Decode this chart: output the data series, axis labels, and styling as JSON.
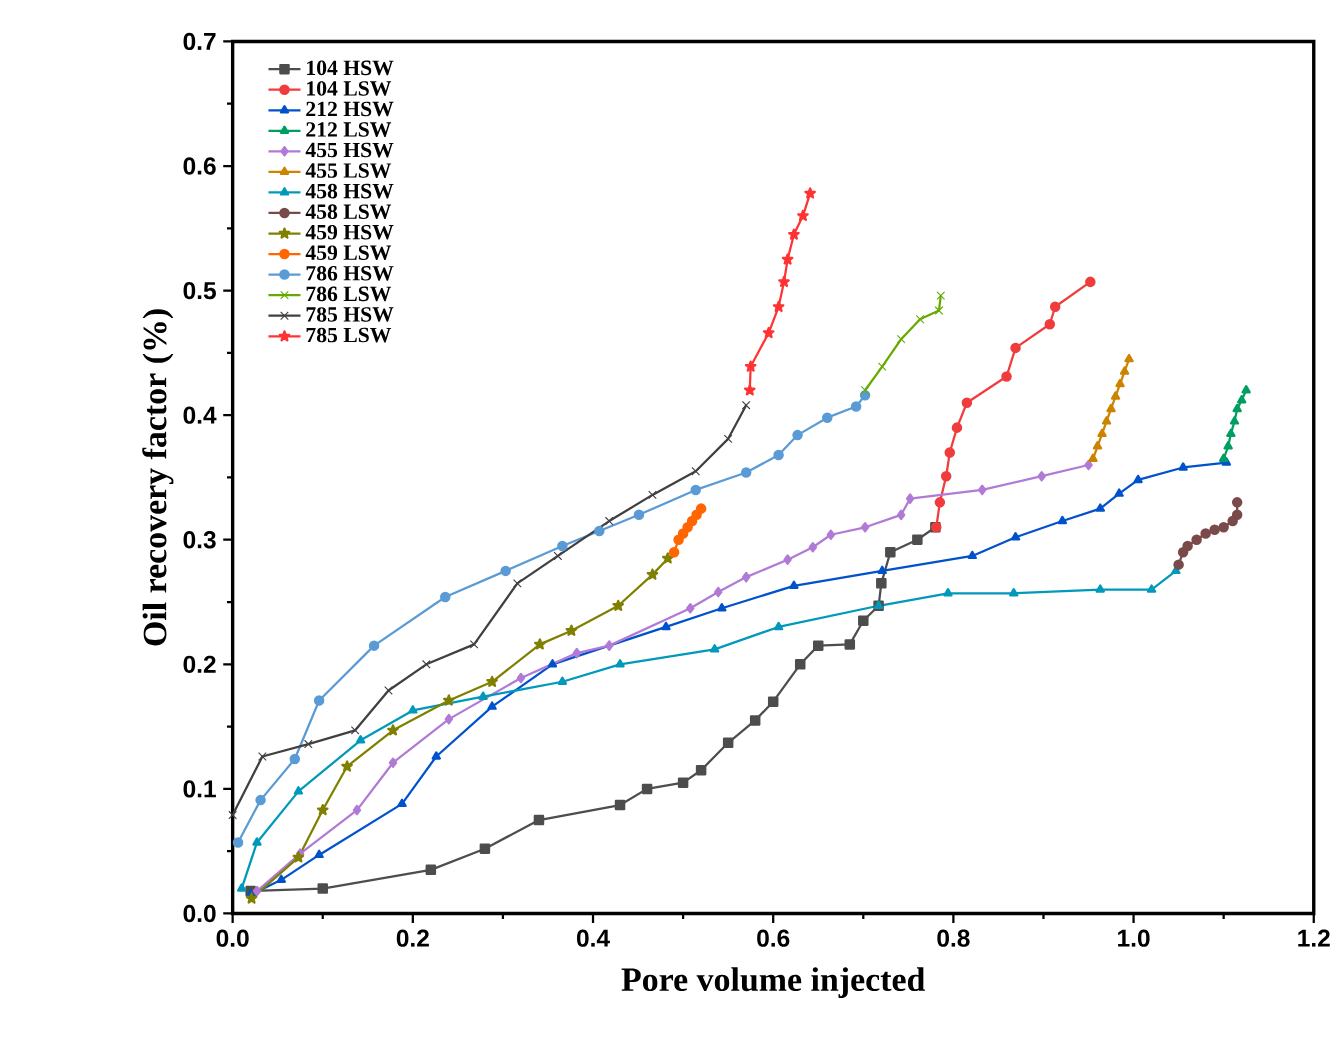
{
  "chart_data": {
    "type": "line",
    "xlabel": "Pore volume injected",
    "ylabel": "Oil recovery factor (%)",
    "xlim": [
      0,
      1.2
    ],
    "ylim": [
      0,
      0.7
    ],
    "xticks": [
      {
        "value": 0,
        "label": "0.0"
      },
      0.2,
      0.4,
      0.6,
      0.8,
      {
        "value": 1,
        "label": "1.0"
      },
      1.2
    ],
    "yticks": [
      {
        "value": 0,
        "label": "0.0"
      },
      0.1,
      0.2,
      0.3,
      0.4,
      0.5,
      0.6,
      0.7
    ],
    "grid": false,
    "legend": "top left",
    "series": [
      {
        "name": "104 HSW",
        "color": "#4d4d4d",
        "marker": "square",
        "x": [
          0.02,
          0.1,
          0.22,
          0.28,
          0.34,
          0.43,
          0.46,
          0.5,
          0.52,
          0.55,
          0.58,
          0.6,
          0.63,
          0.65,
          0.685,
          0.7,
          0.717,
          0.72,
          0.73,
          0.76,
          0.78
        ],
        "values": [
          0.018,
          0.02,
          0.035,
          0.052,
          0.075,
          0.087,
          0.1,
          0.105,
          0.115,
          0.137,
          0.155,
          0.17,
          0.2,
          0.215,
          0.216,
          0.235,
          0.247,
          0.265,
          0.29,
          0.3,
          0.31
        ]
      },
      {
        "name": "104 LSW",
        "color": "#f03c3c",
        "marker": "circle",
        "x": [
          0.781,
          0.785,
          0.792,
          0.796,
          0.804,
          0.815,
          0.859,
          0.869,
          0.907,
          0.913,
          0.952
        ],
        "values": [
          0.31,
          0.33,
          0.351,
          0.37,
          0.39,
          0.41,
          0.431,
          0.454,
          0.473,
          0.487,
          0.507
        ]
      },
      {
        "name": "212 HSW",
        "color": "#0052cc",
        "marker": "triangle",
        "x": [
          0.02,
          0.054,
          0.096,
          0.188,
          0.226,
          0.288,
          0.355,
          0.481,
          0.543,
          0.623,
          0.721,
          0.821,
          0.869,
          0.921,
          0.963,
          0.984,
          1.005,
          1.055,
          1.103
        ],
        "values": [
          0.015,
          0.027,
          0.047,
          0.088,
          0.126,
          0.166,
          0.2,
          0.23,
          0.245,
          0.263,
          0.275,
          0.287,
          0.302,
          0.315,
          0.325,
          0.337,
          0.348,
          0.358,
          0.362
        ]
      },
      {
        "name": "212 LSW",
        "color": "#009e60",
        "marker": "triangle",
        "x": [
          1.1,
          1.105,
          1.108,
          1.112,
          1.115,
          1.12,
          1.125
        ],
        "values": [
          0.365,
          0.375,
          0.385,
          0.395,
          0.405,
          0.412,
          0.42
        ]
      },
      {
        "name": "455 HSW",
        "color": "#b07ad6",
        "marker": "diamond",
        "x": [
          0.027,
          0.075,
          0.138,
          0.178,
          0.24,
          0.32,
          0.382,
          0.418,
          0.508,
          0.539,
          0.57,
          0.616,
          0.644,
          0.664,
          0.702,
          0.742,
          0.752,
          0.832,
          0.898,
          0.95
        ],
        "values": [
          0.018,
          0.048,
          0.083,
          0.121,
          0.156,
          0.189,
          0.209,
          0.215,
          0.245,
          0.258,
          0.27,
          0.284,
          0.294,
          0.304,
          0.31,
          0.32,
          0.333,
          0.34,
          0.351,
          0.36
        ]
      },
      {
        "name": "455 LSW",
        "color": "#cc8400",
        "marker": "triangle",
        "x": [
          0.955,
          0.96,
          0.965,
          0.97,
          0.975,
          0.98,
          0.985,
          0.99,
          0.995
        ],
        "values": [
          0.365,
          0.375,
          0.385,
          0.395,
          0.405,
          0.415,
          0.425,
          0.435,
          0.445
        ]
      },
      {
        "name": "458 HSW",
        "color": "#0099bb",
        "marker": "triangle",
        "x": [
          0.01,
          0.027,
          0.073,
          0.142,
          0.2,
          0.278,
          0.366,
          0.43,
          0.535,
          0.606,
          0.717,
          0.794,
          0.867,
          0.963,
          1.02,
          1.047
        ],
        "values": [
          0.02,
          0.057,
          0.098,
          0.139,
          0.163,
          0.174,
          0.186,
          0.2,
          0.212,
          0.23,
          0.247,
          0.257,
          0.257,
          0.26,
          0.26,
          0.275
        ]
      },
      {
        "name": "458 LSW",
        "color": "#7a4a4a",
        "marker": "circle",
        "x": [
          1.05,
          1.055,
          1.06,
          1.07,
          1.08,
          1.09,
          1.1,
          1.11,
          1.115,
          1.115
        ],
        "values": [
          0.28,
          0.29,
          0.295,
          0.3,
          0.305,
          0.308,
          0.31,
          0.315,
          0.32,
          0.33
        ]
      },
      {
        "name": "459 HSW",
        "color": "#808000",
        "marker": "star",
        "x": [
          0.021,
          0.073,
          0.1,
          0.127,
          0.178,
          0.24,
          0.288,
          0.341,
          0.376,
          0.428,
          0.466,
          0.483
        ],
        "values": [
          0.012,
          0.045,
          0.083,
          0.118,
          0.147,
          0.171,
          0.186,
          0.216,
          0.227,
          0.247,
          0.272,
          0.285
        ]
      },
      {
        "name": "459 LSW",
        "color": "#ff6600",
        "marker": "circle",
        "x": [
          0.49,
          0.495,
          0.5,
          0.505,
          0.51,
          0.515,
          0.52
        ],
        "values": [
          0.29,
          0.3,
          0.305,
          0.31,
          0.315,
          0.32,
          0.325
        ]
      },
      {
        "name": "786 HSW",
        "color": "#5b9bd5",
        "marker": "circle",
        "x": [
          0.006,
          0.031,
          0.069,
          0.096,
          0.157,
          0.236,
          0.303,
          0.366,
          0.407,
          0.451,
          0.514,
          0.57,
          0.606,
          0.627,
          0.66,
          0.692,
          0.702
        ],
        "values": [
          0.057,
          0.091,
          0.124,
          0.171,
          0.215,
          0.254,
          0.275,
          0.295,
          0.307,
          0.32,
          0.34,
          0.354,
          0.368,
          0.384,
          0.398,
          0.407,
          0.416
        ]
      },
      {
        "name": "786 LSW",
        "color": "#66aa00",
        "marker": "cross",
        "x": [
          0.702,
          0.721,
          0.742,
          0.763,
          0.784,
          0.786
        ],
        "values": [
          0.42,
          0.439,
          0.461,
          0.477,
          0.484,
          0.496
        ]
      },
      {
        "name": "785 HSW",
        "color": "#404040",
        "marker": "cross",
        "x": [
          0.0,
          0.033,
          0.084,
          0.136,
          0.173,
          0.215,
          0.268,
          0.316,
          0.361,
          0.418,
          0.466,
          0.514,
          0.55,
          0.57
        ],
        "values": [
          0.079,
          0.126,
          0.136,
          0.147,
          0.179,
          0.2,
          0.216,
          0.265,
          0.287,
          0.315,
          0.336,
          0.355,
          0.381,
          0.408
        ]
      },
      {
        "name": "785 LSW",
        "color": "#ff3333",
        "marker": "star",
        "x": [
          0.574,
          0.575,
          0.595,
          0.606,
          0.612,
          0.616,
          0.623,
          0.633,
          0.641
        ],
        "values": [
          0.42,
          0.439,
          0.466,
          0.487,
          0.507,
          0.525,
          0.545,
          0.56,
          0.578
        ]
      }
    ]
  }
}
